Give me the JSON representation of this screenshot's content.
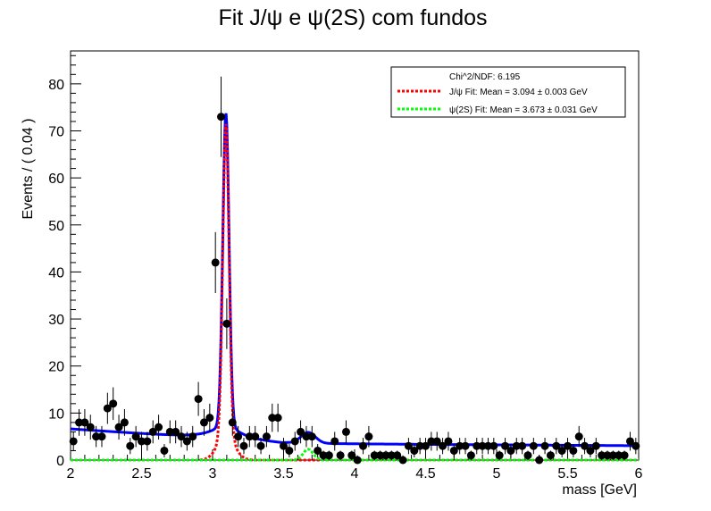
{
  "chart_data": {
    "type": "scatter",
    "title": "Fit J/ψ e ψ(2S) com fundos",
    "xlabel": "mass [GeV]",
    "ylabel": "Events / ( 0.04 )",
    "xlim": [
      2,
      6
    ],
    "ylim": [
      0,
      87
    ],
    "x_ticks": [
      "2",
      "2.5",
      "3",
      "3.5",
      "4",
      "4.5",
      "5",
      "5.5",
      "6"
    ],
    "y_ticks": [
      "0",
      "10",
      "20",
      "30",
      "40",
      "50",
      "60",
      "70",
      "80"
    ],
    "legend": {
      "placement": "top-right",
      "header": "Chi^2/NDF: 6.195",
      "entries": [
        {
          "label": "J/ψ Fit: Mean = 3.094 ± 0.003 GeV",
          "color": "#ff0000",
          "style": "dotted"
        },
        {
          "label": "ψ(2S) Fit: Mean = 3.673 ± 0.031 GeV",
          "color": "#00ff00",
          "style": "dotted"
        }
      ]
    },
    "series": [
      {
        "kind": "points_with_errors",
        "color": "#000000",
        "x": [
          2.02,
          2.06,
          2.1,
          2.14,
          2.18,
          2.22,
          2.26,
          2.3,
          2.34,
          2.38,
          2.42,
          2.46,
          2.5,
          2.54,
          2.58,
          2.62,
          2.66,
          2.7,
          2.74,
          2.78,
          2.82,
          2.86,
          2.9,
          2.94,
          2.98,
          3.02,
          3.06,
          3.1,
          3.14,
          3.18,
          3.22,
          3.26,
          3.3,
          3.34,
          3.38,
          3.42,
          3.46,
          3.5,
          3.54,
          3.58,
          3.62,
          3.66,
          3.7,
          3.74,
          3.78,
          3.82,
          3.86,
          3.9,
          3.94,
          3.98,
          4.02,
          4.06,
          4.1,
          4.14,
          4.18,
          4.22,
          4.26,
          4.3,
          4.34,
          4.38,
          4.42,
          4.46,
          4.5,
          4.54,
          4.58,
          4.62,
          4.66,
          4.7,
          4.74,
          4.78,
          4.82,
          4.86,
          4.9,
          4.94,
          4.98,
          5.02,
          5.06,
          5.1,
          5.14,
          5.18,
          5.22,
          5.26,
          5.3,
          5.34,
          5.38,
          5.42,
          5.46,
          5.5,
          5.54,
          5.58,
          5.62,
          5.66,
          5.7,
          5.74,
          5.78,
          5.82,
          5.86,
          5.9,
          5.94,
          5.98
        ],
        "y": [
          4,
          8,
          8,
          7,
          5,
          5,
          11,
          12,
          7,
          8,
          3,
          5,
          4,
          4,
          6,
          7,
          2,
          6,
          6,
          5,
          4,
          5,
          13,
          8,
          9,
          42,
          73,
          29,
          8,
          5,
          3,
          5,
          5,
          3,
          5,
          9,
          9,
          3,
          2,
          4,
          6,
          5,
          5,
          2,
          1,
          1,
          4,
          1,
          6,
          1,
          0,
          3,
          5,
          1,
          1,
          1,
          1,
          1,
          0,
          3,
          2,
          3,
          3,
          4,
          4,
          3,
          4,
          2,
          3,
          3,
          1,
          3,
          3,
          3,
          3,
          1,
          3,
          2,
          3,
          3,
          1,
          3,
          0,
          3,
          1,
          3,
          2,
          3,
          2,
          5,
          3,
          2,
          3,
          1,
          1,
          1,
          1,
          1,
          4,
          3
        ]
      },
      {
        "kind": "curve",
        "name": "",
        "color": "#0000ff",
        "style": "solid",
        "model": "total"
      },
      {
        "kind": "curve",
        "name": "J/ψ Fit",
        "color": "#ff0000",
        "style": "dotted",
        "model": "jpsi"
      },
      {
        "kind": "curve",
        "name": "ψ(2S) Fit",
        "color": "#00ff00",
        "style": "dotted",
        "model": "psi2s"
      }
    ]
  }
}
